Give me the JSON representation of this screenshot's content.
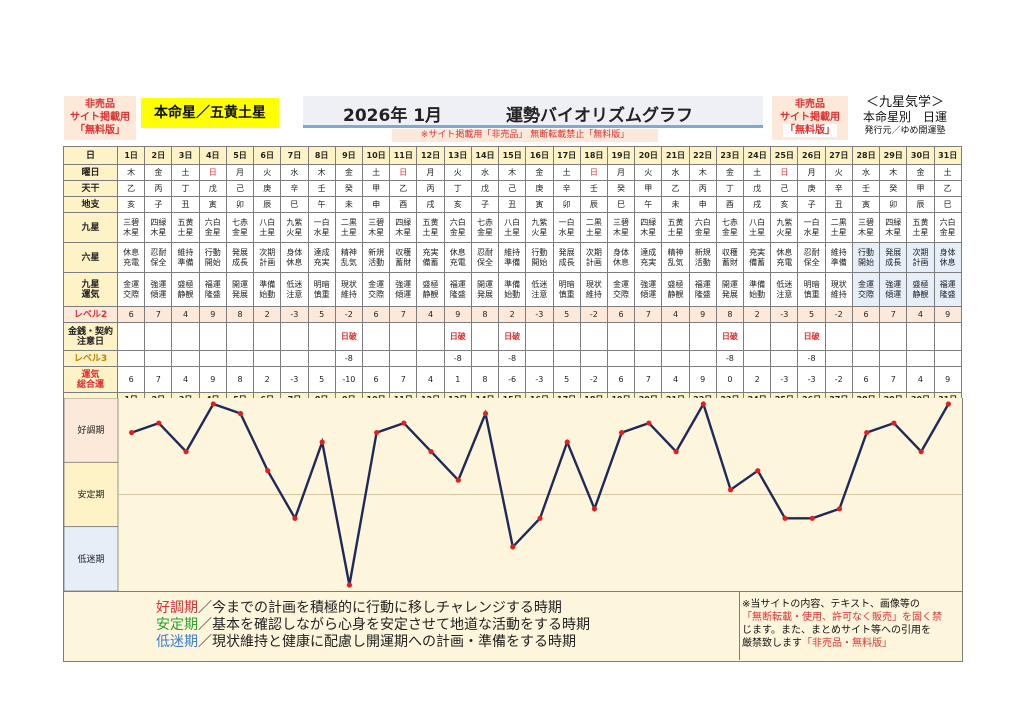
{
  "header": {
    "left_badge": [
      "非売品",
      "サイト掲載用",
      "「無料版」"
    ],
    "star": "本命星／五黄土星",
    "title_year": "2026年 1月",
    "title_main": "運勢バイオリズムグラフ",
    "notice": "※サイト掲載用「非売品」 無断転載禁止「無料版」",
    "right_badge": [
      "非売品",
      "サイト掲載用",
      "「無料版」"
    ],
    "school": "＜九星気学＞",
    "subtitle": "本命星別　日運",
    "publisher": "発行元／ゆめ開運塾"
  },
  "row_labels": {
    "day": "日",
    "weekday": "曜日",
    "tenkan": "天干",
    "chishi": "地支",
    "kyusei": "九星",
    "rokusei": "六星",
    "kyusei_unki": [
      "九星",
      "運気"
    ],
    "level2": "レベル2",
    "caution": [
      "金銭・契約",
      "注意日"
    ],
    "level3": "レベル3",
    "total": [
      "運気",
      "総合運"
    ]
  },
  "days": [
    "1日",
    "2日",
    "3日",
    "4日",
    "5日",
    "6日",
    "7日",
    "8日",
    "9日",
    "10日",
    "11日",
    "12日",
    "13日",
    "14日",
    "15日",
    "16日",
    "17日",
    "18日",
    "19日",
    "20日",
    "21日",
    "22日",
    "23日",
    "24日",
    "25日",
    "26日",
    "27日",
    "28日",
    "29日",
    "30日",
    "31日"
  ],
  "weekdays": [
    "木",
    "金",
    "土",
    "日",
    "月",
    "火",
    "水",
    "木",
    "金",
    "土",
    "日",
    "月",
    "火",
    "水",
    "木",
    "金",
    "土",
    "日",
    "月",
    "火",
    "水",
    "木",
    "金",
    "土",
    "日",
    "月",
    "火",
    "水",
    "木",
    "金",
    "土"
  ],
  "tenkan": [
    "乙",
    "丙",
    "丁",
    "戊",
    "己",
    "庚",
    "辛",
    "壬",
    "癸",
    "甲",
    "乙",
    "丙",
    "丁",
    "戊",
    "己",
    "庚",
    "辛",
    "壬",
    "癸",
    "甲",
    "乙",
    "丙",
    "丁",
    "戊",
    "己",
    "庚",
    "辛",
    "壬",
    "癸",
    "甲",
    "乙"
  ],
  "chishi": [
    "亥",
    "子",
    "丑",
    "寅",
    "卯",
    "辰",
    "巳",
    "午",
    "未",
    "申",
    "酉",
    "戌",
    "亥",
    "子",
    "丑",
    "寅",
    "卯",
    "辰",
    "巳",
    "午",
    "未",
    "申",
    "酉",
    "戌",
    "亥",
    "子",
    "丑",
    "寅",
    "卯",
    "辰",
    "巳"
  ],
  "kyusei": [
    [
      "三碧",
      "木星"
    ],
    [
      "四緑",
      "木星"
    ],
    [
      "五黄",
      "土星"
    ],
    [
      "六白",
      "金星"
    ],
    [
      "七赤",
      "金星"
    ],
    [
      "八白",
      "土星"
    ],
    [
      "九紫",
      "火星"
    ],
    [
      "一白",
      "水星"
    ],
    [
      "二黒",
      "土星"
    ],
    [
      "三碧",
      "木星"
    ],
    [
      "四緑",
      "木星"
    ],
    [
      "五黄",
      "土星"
    ],
    [
      "六白",
      "金星"
    ],
    [
      "七赤",
      "金星"
    ],
    [
      "八白",
      "土星"
    ],
    [
      "九紫",
      "火星"
    ],
    [
      "一白",
      "水星"
    ],
    [
      "二黒",
      "土星"
    ],
    [
      "三碧",
      "木星"
    ],
    [
      "四緑",
      "木星"
    ],
    [
      "五黄",
      "土星"
    ],
    [
      "六白",
      "金星"
    ],
    [
      "七赤",
      "金星"
    ],
    [
      "八白",
      "土星"
    ],
    [
      "九紫",
      "火星"
    ],
    [
      "一白",
      "水星"
    ],
    [
      "二黒",
      "土星"
    ],
    [
      "三碧",
      "木星"
    ],
    [
      "四緑",
      "木星"
    ],
    [
      "五黄",
      "土星"
    ],
    [
      "六白",
      "金星"
    ]
  ],
  "rokusei": [
    [
      "休息",
      "充電"
    ],
    [
      "忍耐",
      "保全"
    ],
    [
      "維持",
      "準備"
    ],
    [
      "行動",
      "開始"
    ],
    [
      "発展",
      "成長"
    ],
    [
      "次期",
      "計画"
    ],
    [
      "身体",
      "休息"
    ],
    [
      "達成",
      "充実"
    ],
    [
      "精神",
      "乱気"
    ],
    [
      "新規",
      "活動"
    ],
    [
      "収穫",
      "蓄財"
    ],
    [
      "充実",
      "備蓄"
    ],
    [
      "休息",
      "充電"
    ],
    [
      "忍耐",
      "保全"
    ],
    [
      "維持",
      "準備"
    ],
    [
      "行動",
      "開始"
    ],
    [
      "発展",
      "成長"
    ],
    [
      "次期",
      "計画"
    ],
    [
      "身体",
      "休息"
    ],
    [
      "達成",
      "充実"
    ],
    [
      "精神",
      "乱気"
    ],
    [
      "新規",
      "活動"
    ],
    [
      "収穫",
      "蓄財"
    ],
    [
      "充実",
      "備蓄"
    ],
    [
      "休息",
      "充電"
    ],
    [
      "忍耐",
      "保全"
    ],
    [
      "維持",
      "準備"
    ],
    [
      "行動",
      "開始"
    ],
    [
      "発展",
      "成長"
    ],
    [
      "次期",
      "計画"
    ],
    [
      "身体",
      "休息"
    ]
  ],
  "unki": [
    [
      "金運",
      "交際"
    ],
    [
      "強運",
      "傾運"
    ],
    [
      "盛極",
      "静観"
    ],
    [
      "福運",
      "隆盛"
    ],
    [
      "開運",
      "発展"
    ],
    [
      "準備",
      "始動"
    ],
    [
      "低迷",
      "注意"
    ],
    [
      "明暗",
      "慎重"
    ],
    [
      "現状",
      "維持"
    ],
    [
      "金運",
      "交際"
    ],
    [
      "強運",
      "傾運"
    ],
    [
      "盛極",
      "静観"
    ],
    [
      "福運",
      "隆盛"
    ],
    [
      "開運",
      "発展"
    ],
    [
      "準備",
      "始動"
    ],
    [
      "低迷",
      "注意"
    ],
    [
      "明暗",
      "慎重"
    ],
    [
      "現状",
      "維持"
    ],
    [
      "金運",
      "交際"
    ],
    [
      "強運",
      "傾運"
    ],
    [
      "盛極",
      "静観"
    ],
    [
      "福運",
      "隆盛"
    ],
    [
      "開運",
      "発展"
    ],
    [
      "準備",
      "始動"
    ],
    [
      "低迷",
      "注意"
    ],
    [
      "明暗",
      "慎重"
    ],
    [
      "現状",
      "維持"
    ],
    [
      "金運",
      "交際"
    ],
    [
      "強運",
      "傾運"
    ],
    [
      "盛極",
      "静観"
    ],
    [
      "福運",
      "隆盛"
    ]
  ],
  "level2": [
    "6",
    "7",
    "4",
    "9",
    "8",
    "2",
    "-3",
    "5",
    "-2",
    "6",
    "7",
    "4",
    "9",
    "8",
    "2",
    "-3",
    "5",
    "-2",
    "6",
    "7",
    "4",
    "9",
    "8",
    "2",
    "-3",
    "5",
    "-2",
    "6",
    "7",
    "4",
    "9"
  ],
  "caution": [
    "",
    "",
    "",
    "",
    "",
    "",
    "",
    "",
    "日破",
    "",
    "",
    "",
    "日破",
    "",
    "日破",
    "",
    "",
    "",
    "",
    "",
    "",
    "",
    "日破",
    "",
    "",
    "日破",
    "",
    "",
    "",
    "",
    ""
  ],
  "level3": [
    "",
    "",
    "",
    "",
    "",
    "",
    "",
    "",
    "-8",
    "",
    "",
    "",
    "-8",
    "",
    "-8",
    "",
    "",
    "",
    "",
    "",
    "",
    "",
    "-8",
    "",
    "",
    "-8",
    "",
    "",
    "",
    "",
    ""
  ],
  "total": [
    "6",
    "7",
    "4",
    "9",
    "8",
    "2",
    "-3",
    "5",
    "-10",
    "6",
    "7",
    "4",
    "1",
    "8",
    "-6",
    "-3",
    "5",
    "-2",
    "6",
    "7",
    "4",
    "9",
    "0",
    "2",
    "-3",
    "-3",
    "-2",
    "6",
    "7",
    "4",
    "9"
  ],
  "chart_data": {
    "type": "line",
    "x": [
      "1日",
      "2日",
      "3日",
      "4日",
      "5日",
      "6日",
      "7日",
      "8日",
      "9日",
      "10日",
      "11日",
      "12日",
      "13日",
      "14日",
      "15日",
      "16日",
      "17日",
      "18日",
      "19日",
      "20日",
      "21日",
      "22日",
      "23日",
      "24日",
      "25日",
      "26日",
      "27日",
      "28日",
      "29日",
      "30日",
      "31日"
    ],
    "series": [
      {
        "values": [
          6,
          7,
          4,
          9,
          8,
          2,
          -3,
          5,
          -10,
          6,
          7,
          4,
          1,
          8,
          -6,
          -3,
          5,
          -2,
          6,
          7,
          4,
          9,
          0,
          2,
          -3,
          -3,
          -2,
          6,
          7,
          4,
          9
        ]
      }
    ],
    "ylim": [
      -10,
      9
    ],
    "bands": [
      "好調期",
      "安定期",
      "低迷期"
    ],
    "line_color": "#1f2a5a",
    "point_color": "#e02020",
    "band_colors": {
      "good": "#fde9d9",
      "stable": "#fdf3c6",
      "low": "#e6eef8"
    }
  },
  "legend": {
    "good_term": "好調期",
    "good_text": "／今までの計画を積極的に行動に移しチャレンジする時期",
    "stable_term": "安定期",
    "stable_text": "／基本を確認しながら心身を安定させて地道な活動をする時期",
    "low_term": "低迷期",
    "low_text": "／現状維持と健康に配慮し開運期への計画・準備をする時期",
    "copyright_1": "※当サイトの内容、テキスト、画像等の",
    "copyright_2": "「無断転載・使用、許可なく販売」を固く禁",
    "copyright_3": "じます。また、まとめサイト等への引用を",
    "copyright_4a": "厳禁致します",
    "copyright_4b": "「非売品・無料版」"
  }
}
